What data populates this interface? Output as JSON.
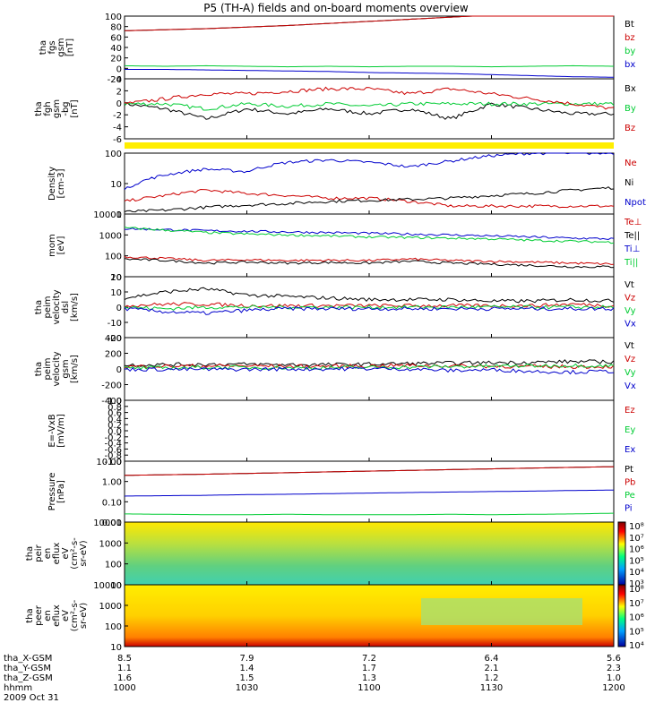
{
  "title": "P5 (TH-A) fields and on-board moments overview",
  "date_label": "2009 Oct 31",
  "colors": {
    "black": "#000000",
    "red": "#cc0000",
    "green": "#00cc33",
    "blue": "#0000cc",
    "yellow": "#ffee00"
  },
  "chart_data": [
    {
      "id": "fgs",
      "type": "line",
      "ylabel": [
        "tha",
        "fgs",
        "gsm",
        "[nT]"
      ],
      "ylim": [
        -20,
        100
      ],
      "yticks": [
        "100",
        "80",
        "60",
        "40",
        "20",
        "0",
        "-20"
      ],
      "series": [
        {
          "name": "Bt",
          "color": "#000000",
          "values": [
            72,
            74,
            76,
            79,
            82,
            86,
            90,
            94,
            98,
            102,
            106,
            110,
            113
          ]
        },
        {
          "name": "bz",
          "color": "#cc0000",
          "values": [
            72,
            74,
            76,
            79,
            82,
            86,
            90,
            94,
            98,
            102,
            106,
            110,
            113
          ]
        },
        {
          "name": "by",
          "color": "#00cc33",
          "values": [
            5,
            4,
            5,
            4,
            3,
            4,
            3,
            4,
            4,
            3,
            4,
            5,
            4
          ]
        },
        {
          "name": "bx",
          "color": "#0000cc",
          "values": [
            -2,
            -2,
            -3,
            -4,
            -5,
            -6,
            -8,
            -9,
            -10,
            -12,
            -14,
            -16,
            -17
          ]
        }
      ]
    },
    {
      "id": "fgh",
      "type": "line",
      "ylabel": [
        "tha",
        "fgh",
        "gsm",
        "-bg",
        "[nT]"
      ],
      "ylim": [
        -7,
        5
      ],
      "yticks": [
        "4",
        "2",
        "0",
        "-2",
        "-4",
        "-6"
      ],
      "series": [
        {
          "name": "Bx",
          "color": "#000000",
          "values": [
            0,
            -1,
            -3,
            -1,
            -2,
            -1,
            -2,
            -1,
            -3,
            0,
            -1,
            -2,
            -2
          ]
        },
        {
          "name": "By",
          "color": "#00cc33",
          "values": [
            0,
            0,
            -1,
            0,
            -0.5,
            0,
            -0.5,
            0,
            0,
            0,
            0,
            0,
            0
          ]
        },
        {
          "name": "Bz",
          "color": "#cc0000",
          "values": [
            0,
            1,
            2,
            2,
            2.5,
            3,
            3,
            2,
            3,
            2,
            1,
            0,
            -1
          ]
        }
      ]
    },
    {
      "id": "density",
      "type": "line",
      "log": true,
      "ylabel": [
        "Density",
        "[cm-3]"
      ],
      "ylim": [
        1,
        200
      ],
      "yticks": [
        "100",
        "10",
        "1"
      ],
      "series": [
        {
          "name": "Ne",
          "color": "#cc0000",
          "values": [
            3,
            5,
            8,
            6,
            5,
            4,
            4,
            3,
            2,
            2,
            2,
            2,
            2
          ]
        },
        {
          "name": "Ni",
          "color": "#000000",
          "values": [
            1.2,
            1.4,
            1.8,
            2.2,
            2.5,
            3,
            3.3,
            3.6,
            4,
            5,
            6,
            8,
            10
          ]
        },
        {
          "name": "Npot",
          "color": "#0000cc",
          "values": [
            8,
            30,
            50,
            40,
            90,
            110,
            90,
            60,
            100,
            160,
            200,
            200,
            200
          ]
        }
      ]
    },
    {
      "id": "temp",
      "type": "line",
      "log": true,
      "ylabel": [
        "mom",
        "[eV]"
      ],
      "ylim": [
        10,
        10000
      ],
      "yticks": [
        "10000",
        "1000",
        "100",
        "10"
      ],
      "series": [
        {
          "name": "Te⊥",
          "color": "#cc0000",
          "values": [
            90,
            75,
            60,
            65,
            60,
            62,
            60,
            70,
            60,
            55,
            50,
            45,
            40
          ]
        },
        {
          "name": "Te||",
          "color": "#000000",
          "values": [
            70,
            60,
            45,
            50,
            45,
            48,
            45,
            55,
            45,
            40,
            35,
            30,
            30
          ]
        },
        {
          "name": "Ti⊥",
          "color": "#0000cc",
          "values": [
            2000,
            1800,
            1600,
            1500,
            1400,
            1300,
            1200,
            1100,
            1000,
            900,
            800,
            700,
            650
          ]
        },
        {
          "name": "Ti||",
          "color": "#00cc33",
          "values": [
            2200,
            1700,
            1300,
            1100,
            1000,
            900,
            800,
            750,
            700,
            650,
            550,
            500,
            450
          ]
        }
      ]
    },
    {
      "id": "peim",
      "type": "line",
      "ylabel": [
        "tha",
        "peim",
        "velocity",
        "dsl",
        "[km/s]"
      ],
      "ylim": [
        -20,
        20
      ],
      "yticks": [
        "20",
        "10",
        "0",
        "-10",
        "-20"
      ],
      "series": [
        {
          "name": "Vt",
          "color": "#000000",
          "values": [
            6,
            10,
            12,
            8,
            7,
            6,
            5,
            5,
            5,
            4,
            4,
            5,
            4
          ]
        },
        {
          "name": "Vz",
          "color": "#cc0000",
          "values": [
            1,
            2,
            2,
            1,
            1,
            1,
            1,
            1,
            1,
            1,
            1,
            2,
            1
          ]
        },
        {
          "name": "Vy",
          "color": "#00cc33",
          "values": [
            0,
            -1,
            0,
            0,
            0,
            0,
            0,
            0,
            0,
            0,
            0,
            0,
            0
          ]
        },
        {
          "name": "Vx",
          "color": "#0000cc",
          "values": [
            -1,
            -3,
            -4,
            -2,
            -1,
            -1,
            -1,
            -1,
            -1,
            -1,
            -1,
            -1,
            -1
          ]
        }
      ]
    },
    {
      "id": "peir",
      "type": "line",
      "ylabel": [
        "tha",
        "peim",
        "velocity",
        "gsm",
        "[km/s]"
      ],
      "ylim": [
        -400,
        400
      ],
      "yticks": [
        "400",
        "200",
        "0",
        "-200",
        "-400"
      ],
      "series": [
        {
          "name": "Vt",
          "color": "#000000",
          "values": [
            50,
            55,
            60,
            60,
            55,
            55,
            60,
            70,
            75,
            80,
            85,
            95,
            90
          ]
        },
        {
          "name": "Vz",
          "color": "#cc0000",
          "values": [
            30,
            35,
            40,
            40,
            35,
            35,
            40,
            45,
            40,
            35,
            30,
            30,
            30
          ]
        },
        {
          "name": "Vy",
          "color": "#00cc33",
          "values": [
            10,
            15,
            20,
            20,
            15,
            15,
            20,
            25,
            30,
            35,
            40,
            45,
            40
          ]
        },
        {
          "name": "Vx",
          "color": "#0000cc",
          "values": [
            -5,
            -5,
            -5,
            -5,
            0,
            0,
            5,
            0,
            -20,
            -10,
            -30,
            -40,
            -30
          ]
        }
      ]
    },
    {
      "id": "efield",
      "type": "line",
      "ylabel": [
        "E=-VxB",
        "[mV/m]"
      ],
      "ylim": [
        -1,
        1
      ],
      "yticks": [
        "1.0",
        "0.8",
        "0.6",
        "0.4",
        "0.2",
        "0.0",
        "-0.2",
        "-0.4",
        "-0.6",
        "-0.8",
        "-1.0"
      ],
      "series": [
        {
          "name": "Ez",
          "color": "#cc0000",
          "values": []
        },
        {
          "name": "Ey",
          "color": "#00cc33",
          "values": []
        },
        {
          "name": "Ex",
          "color": "#0000cc",
          "values": []
        }
      ]
    },
    {
      "id": "pressure",
      "type": "line",
      "log": true,
      "ylabel": [
        "Pressure",
        "[nPa]"
      ],
      "ylim": [
        0.008,
        15
      ],
      "yticks": [
        "10.00",
        "1.00",
        "0.10",
        "0.01"
      ],
      "series": [
        {
          "name": "Pt",
          "color": "#000000",
          "values": [
            2.6,
            2.8,
            3.0,
            3.3,
            3.6,
            4.0,
            4.4,
            4.8,
            5.3,
            5.8,
            6.4,
            7.0,
            7.6
          ]
        },
        {
          "name": "Pb",
          "color": "#cc0000",
          "values": [
            2.6,
            2.8,
            3.0,
            3.3,
            3.6,
            4.0,
            4.4,
            4.8,
            5.3,
            5.8,
            6.4,
            7.0,
            7.6
          ]
        },
        {
          "name": "Pe",
          "color": "#00cc33",
          "values": [
            0.022,
            0.021,
            0.02,
            0.02,
            0.021,
            0.02,
            0.02,
            0.02,
            0.021,
            0.02,
            0.021,
            0.022,
            0.024
          ]
        },
        {
          "name": "Pi",
          "color": "#0000cc",
          "values": [
            0.2,
            0.21,
            0.22,
            0.24,
            0.25,
            0.27,
            0.29,
            0.31,
            0.33,
            0.35,
            0.37,
            0.4,
            0.42
          ]
        }
      ]
    },
    {
      "id": "peir_spec",
      "type": "heatmap",
      "ylabel": [
        "tha",
        "peir",
        "en",
        "eflux",
        "eV",
        "(cm²-s-",
        "sr-eV)"
      ],
      "ylim": [
        10,
        15000
      ],
      "yticks": [
        "10000",
        "1000",
        "100",
        "10"
      ],
      "colorbar": [
        "10⁸",
        "10⁷",
        "10⁶",
        "10⁵",
        "10⁴",
        "10³"
      ]
    },
    {
      "id": "peer_spec",
      "type": "heatmap",
      "ylabel": [
        "tha",
        "peer",
        "en",
        "eflux",
        "eV",
        "(cm²-s-",
        "sr-eV)"
      ],
      "ylim": [
        10,
        15000
      ],
      "yticks": [
        "10000",
        "1000",
        "100",
        "10"
      ],
      "colorbar": [
        "10⁸",
        "10⁷",
        "10⁶",
        "10⁵",
        "10⁴"
      ]
    }
  ],
  "xaxis": {
    "ticks": [
      "1000",
      "1030",
      "1100",
      "1130",
      "1200"
    ],
    "rows": [
      {
        "label": "tha_X-GSM",
        "values": [
          "8.5",
          "7.9",
          "7.2",
          "6.4",
          "5.6"
        ]
      },
      {
        "label": "tha_Y-GSM",
        "values": [
          "1.1",
          "1.4",
          "1.7",
          "2.1",
          "2.3"
        ]
      },
      {
        "label": "tha_Z-GSM",
        "values": [
          "1.6",
          "1.5",
          "1.3",
          "1.2",
          "1.0"
        ]
      },
      {
        "label": "hhmm",
        "values": [
          "1000",
          "1030",
          "1100",
          "1130",
          "1200"
        ]
      }
    ]
  }
}
